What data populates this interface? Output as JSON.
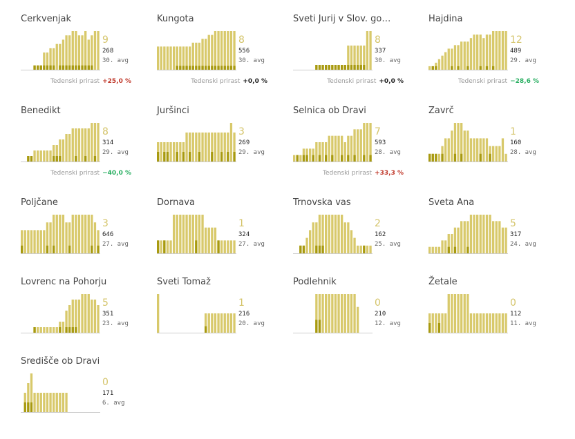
{
  "colors": {
    "bar_light": "#d8c96b",
    "bar_dark": "#a89a10",
    "axis": "#cccccc",
    "big": "#d4c46a",
    "pos": "#c0392b",
    "neg": "#27ae60",
    "zero": "#222222"
  },
  "growth_label": "Tedenski prirast",
  "chart_data": [
    {
      "type": "bar",
      "title": "Cerkvenjak",
      "active": "9",
      "total": "268",
      "avg": "30. avg",
      "growth": "+25,0 %",
      "growth_sign": "pos",
      "values": [
        0,
        0,
        0,
        0,
        1,
        1,
        1,
        4,
        4,
        5,
        5,
        6,
        6,
        7,
        8,
        8,
        9,
        9,
        8,
        8,
        9,
        7,
        8,
        9,
        9
      ],
      "dark": [
        0,
        0,
        0,
        0,
        1,
        1,
        1,
        1,
        1,
        1,
        1,
        0,
        1,
        1,
        1,
        1,
        1,
        1,
        1,
        1,
        1,
        1,
        1,
        0,
        0
      ]
    },
    {
      "type": "bar",
      "title": "Kungota",
      "active": "8",
      "total": "556",
      "avg": "30. avg",
      "growth": "+0,0 %",
      "growth_sign": "zero",
      "values": [
        6,
        6,
        6,
        6,
        6,
        6,
        6,
        6,
        6,
        6,
        6,
        7,
        7,
        7,
        8,
        8,
        9,
        9,
        10,
        10,
        10,
        10,
        10,
        10,
        10
      ],
      "dark": [
        0,
        0,
        0,
        0,
        0,
        0,
        1,
        1,
        1,
        1,
        1,
        1,
        1,
        1,
        1,
        1,
        1,
        1,
        1,
        1,
        1,
        1,
        1,
        1,
        1
      ]
    },
    {
      "type": "bar",
      "title": "Sveti Jurij v Slov. go…",
      "active": "8",
      "total": "337",
      "avg": "30. avg",
      "growth": "+0,0 %",
      "growth_sign": "zero",
      "values": [
        0,
        0,
        0,
        0,
        0,
        0,
        0,
        1,
        1,
        1,
        1,
        1,
        1,
        1,
        1,
        1,
        1,
        5,
        5,
        5,
        5,
        5,
        5,
        8,
        8
      ],
      "dark": [
        0,
        0,
        0,
        0,
        0,
        0,
        0,
        1,
        1,
        1,
        1,
        1,
        1,
        1,
        1,
        1,
        1,
        1,
        1,
        1,
        1,
        1,
        1,
        0,
        0
      ]
    },
    {
      "type": "bar",
      "title": "Hajdina",
      "active": "12",
      "total": "489",
      "avg": "29. avg",
      "growth": "−28,6 %",
      "growth_sign": "neg",
      "values": [
        1,
        1,
        2,
        3,
        4,
        5,
        6,
        6,
        7,
        7,
        8,
        8,
        8,
        9,
        10,
        10,
        10,
        9,
        10,
        10,
        11,
        11,
        11,
        11,
        11
      ],
      "dark": [
        0,
        1,
        1,
        0,
        0,
        0,
        0,
        1,
        0,
        1,
        0,
        0,
        1,
        0,
        0,
        0,
        1,
        0,
        1,
        0,
        1,
        0,
        0,
        0,
        0
      ]
    },
    {
      "type": "bar",
      "title": "Benedikt",
      "active": "8",
      "total": "314",
      "avg": "29. avg",
      "growth": "−40,0 %",
      "growth_sign": "neg",
      "values": [
        0,
        0,
        1,
        1,
        2,
        2,
        2,
        2,
        2,
        2,
        3,
        3,
        4,
        4,
        5,
        5,
        6,
        6,
        6,
        6,
        6,
        6,
        7,
        7,
        7
      ],
      "dark": [
        0,
        0,
        1,
        1,
        0,
        0,
        0,
        0,
        0,
        0,
        1,
        1,
        1,
        0,
        0,
        0,
        0,
        1,
        0,
        0,
        1,
        0,
        0,
        1,
        0
      ]
    },
    {
      "type": "bar",
      "title": "Juršinci",
      "active": "3",
      "total": "269",
      "avg": "29. avg",
      "growth": "",
      "values": [
        2,
        2,
        2,
        2,
        2,
        2,
        2,
        2,
        2,
        3,
        3,
        3,
        3,
        3,
        3,
        3,
        3,
        3,
        3,
        3,
        3,
        3,
        3,
        4,
        3
      ],
      "dark": [
        1,
        0,
        1,
        1,
        0,
        0,
        1,
        0,
        1,
        0,
        1,
        0,
        0,
        1,
        0,
        0,
        0,
        1,
        0,
        0,
        1,
        0,
        1,
        0,
        1
      ]
    },
    {
      "type": "bar",
      "title": "Selnica ob Dravi",
      "active": "7",
      "total": "593",
      "avg": "28. avg",
      "growth": "+33,3 %",
      "growth_sign": "pos",
      "values": [
        1,
        1,
        1,
        2,
        2,
        2,
        2,
        3,
        3,
        3,
        3,
        4,
        4,
        4,
        4,
        4,
        3,
        4,
        4,
        5,
        5,
        5,
        6,
        6,
        6
      ],
      "dark": [
        0,
        1,
        0,
        1,
        1,
        0,
        1,
        0,
        1,
        0,
        1,
        0,
        1,
        0,
        0,
        1,
        0,
        1,
        0,
        1,
        0,
        0,
        1,
        0,
        1
      ]
    },
    {
      "type": "bar",
      "title": "Zavrč",
      "active": "1",
      "total": "160",
      "avg": "28. avg",
      "growth": "",
      "values": [
        1,
        1,
        1,
        1,
        2,
        3,
        3,
        4,
        5,
        5,
        5,
        4,
        4,
        3,
        3,
        3,
        3,
        3,
        3,
        2,
        2,
        2,
        2,
        3,
        1
      ],
      "dark": [
        1,
        1,
        1,
        0,
        1,
        0,
        0,
        0,
        1,
        0,
        1,
        0,
        0,
        0,
        0,
        0,
        1,
        0,
        0,
        1,
        0,
        0,
        0,
        0,
        0
      ]
    },
    {
      "type": "bar",
      "title": "Poljčane",
      "active": "3",
      "total": "646",
      "avg": "27. avg",
      "growth": "",
      "values": [
        3,
        3,
        3,
        3,
        3,
        3,
        3,
        3,
        4,
        4,
        5,
        5,
        5,
        5,
        4,
        4,
        5,
        5,
        5,
        5,
        5,
        5,
        5,
        4,
        3
      ],
      "dark": [
        1,
        0,
        0,
        0,
        0,
        0,
        0,
        0,
        1,
        0,
        1,
        0,
        0,
        0,
        0,
        1,
        0,
        0,
        0,
        0,
        0,
        0,
        1,
        0,
        1
      ]
    },
    {
      "type": "bar",
      "title": "Dornava",
      "active": "1",
      "total": "324",
      "avg": "27. avg",
      "growth": "",
      "values": [
        1,
        1,
        1,
        1,
        1,
        3,
        3,
        3,
        3,
        3,
        3,
        3,
        3,
        3,
        3,
        2,
        2,
        2,
        2,
        1,
        1,
        1,
        1,
        1,
        1
      ],
      "dark": [
        1,
        0,
        1,
        0,
        0,
        0,
        0,
        0,
        0,
        0,
        0,
        0,
        1,
        0,
        0,
        0,
        0,
        0,
        0,
        1,
        0,
        0,
        0,
        0,
        0
      ]
    },
    {
      "type": "bar",
      "title": "Trnovska vas",
      "active": "2",
      "total": "162",
      "avg": "25. avg",
      "growth": "",
      "values": [
        0,
        0,
        1,
        1,
        2,
        3,
        4,
        4,
        5,
        5,
        5,
        5,
        5,
        5,
        5,
        5,
        4,
        4,
        3,
        2,
        1,
        1,
        1,
        1,
        1
      ],
      "dark": [
        0,
        0,
        1,
        1,
        0,
        0,
        0,
        1,
        1,
        1,
        0,
        0,
        0,
        0,
        0,
        0,
        0,
        0,
        0,
        0,
        0,
        0,
        1,
        0,
        0
      ]
    },
    {
      "type": "bar",
      "title": "Sveta Ana",
      "active": "5",
      "total": "317",
      "avg": "24. avg",
      "growth": "",
      "values": [
        1,
        1,
        1,
        1,
        2,
        2,
        3,
        3,
        4,
        4,
        5,
        5,
        5,
        6,
        6,
        6,
        6,
        6,
        6,
        6,
        5,
        5,
        5,
        4,
        4
      ],
      "dark": [
        0,
        0,
        0,
        0,
        0,
        0,
        1,
        0,
        1,
        0,
        0,
        0,
        1,
        0,
        0,
        0,
        0,
        0,
        0,
        0,
        0,
        0,
        0,
        0,
        0
      ]
    },
    {
      "type": "bar",
      "title": "Lovrenc na Pohorju",
      "active": "5",
      "total": "351",
      "avg": "23. avg",
      "growth": "",
      "values": [
        0,
        0,
        0,
        0,
        1,
        1,
        1,
        1,
        1,
        1,
        1,
        1,
        2,
        2,
        4,
        5,
        6,
        6,
        6,
        7,
        7,
        7,
        6,
        6,
        5
      ],
      "dark": [
        0,
        0,
        0,
        0,
        1,
        0,
        0,
        0,
        0,
        0,
        0,
        0,
        1,
        0,
        1,
        1,
        1,
        1,
        0,
        0,
        0,
        0,
        0,
        0,
        0
      ]
    },
    {
      "type": "bar",
      "title": "Sveti Tomaž",
      "active": "1",
      "total": "216",
      "avg": "20. avg",
      "growth": "",
      "values": [
        6,
        0,
        0,
        0,
        0,
        0,
        0,
        0,
        0,
        0,
        0,
        0,
        0,
        0,
        0,
        3,
        3,
        3,
        3,
        3,
        3,
        3,
        3,
        3,
        3
      ],
      "dark": [
        0,
        0,
        0,
        0,
        0,
        0,
        0,
        0,
        0,
        0,
        0,
        0,
        0,
        0,
        0,
        1,
        0,
        0,
        0,
        0,
        0,
        0,
        0,
        0,
        0
      ]
    },
    {
      "type": "bar",
      "title": "Podlehnik",
      "active": "0",
      "total": "210",
      "avg": "12. avg",
      "growth": "",
      "values": [
        0,
        0,
        0,
        0,
        0,
        0,
        0,
        3,
        3,
        3,
        3,
        3,
        3,
        3,
        3,
        3,
        3,
        3,
        3,
        3,
        2,
        0,
        0,
        0,
        0
      ],
      "dark": [
        0,
        0,
        0,
        0,
        0,
        0,
        0,
        1,
        1,
        0,
        0,
        0,
        0,
        0,
        0,
        0,
        0,
        0,
        0,
        0,
        0,
        0,
        0,
        0,
        0
      ]
    },
    {
      "type": "bar",
      "title": "Žetale",
      "active": "0",
      "total": "112",
      "avg": "11. avg",
      "growth": "",
      "values": [
        2,
        2,
        2,
        2,
        2,
        2,
        4,
        4,
        4,
        4,
        4,
        4,
        4,
        2,
        2,
        2,
        2,
        2,
        2,
        2,
        2,
        2,
        2,
        2,
        2
      ],
      "dark": [
        1,
        0,
        0,
        1,
        0,
        0,
        0,
        0,
        0,
        0,
        0,
        0,
        0,
        0,
        0,
        0,
        0,
        0,
        0,
        0,
        0,
        0,
        0,
        0,
        0
      ]
    },
    {
      "type": "bar",
      "title": "Središče ob Dravi",
      "active": "0",
      "total": "171",
      "avg": "6. avg",
      "growth": "",
      "values": [
        0,
        2,
        3,
        4,
        2,
        2,
        2,
        2,
        2,
        2,
        2,
        2,
        2,
        2,
        2,
        0,
        0,
        0,
        0,
        0,
        0,
        0,
        0,
        0,
        0
      ],
      "dark": [
        0,
        1,
        1,
        1,
        0,
        0,
        0,
        0,
        0,
        0,
        0,
        0,
        0,
        0,
        0,
        0,
        0,
        0,
        0,
        0,
        0,
        0,
        0,
        0,
        0
      ]
    }
  ]
}
